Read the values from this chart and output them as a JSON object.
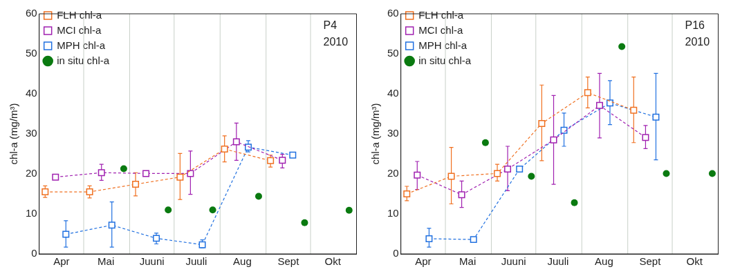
{
  "chart_data": [
    {
      "type": "line",
      "ylabel": "chl-a (mg/m³)",
      "annotations": [
        "P4",
        "2010"
      ],
      "xlim": [
        "2010-04-01",
        "2010-11-01"
      ],
      "xticks": [
        {
          "value": "2010-04-16",
          "label": "Apr"
        },
        {
          "value": "2010-05-16",
          "label": "Mai"
        },
        {
          "value": "2010-06-16",
          "label": "Juuni"
        },
        {
          "value": "2010-07-16",
          "label": "Juuli"
        },
        {
          "value": "2010-08-16",
          "label": "Aug"
        },
        {
          "value": "2010-09-16",
          "label": "Sept"
        },
        {
          "value": "2010-10-16",
          "label": "Okt"
        }
      ],
      "ylim": [
        0,
        60
      ],
      "yticks": [
        0,
        10,
        20,
        30,
        40,
        50,
        60
      ],
      "grid": false,
      "legend": "top left",
      "ref_lines": [
        {
          "axis": "x",
          "value": "2010-05-01",
          "color": "#c8d0c8"
        },
        {
          "axis": "x",
          "value": "2010-06-01",
          "color": "#c8d0c8"
        },
        {
          "axis": "x",
          "value": "2010-07-01",
          "color": "#c8d0c8"
        },
        {
          "axis": "x",
          "value": "2010-08-01",
          "color": "#c8d0c8"
        },
        {
          "axis": "x",
          "value": "2010-09-01",
          "color": "#c8d0c8"
        },
        {
          "axis": "x",
          "value": "2010-10-01",
          "color": "#c8d0c8"
        }
      ],
      "series": [
        {
          "name": "FLH chl-a",
          "type": "line",
          "color": "#f07020",
          "marker": "square",
          "line_style": "dashed",
          "x": [
            "2010-04-05",
            "2010-05-05",
            "2010-06-05",
            "2010-07-05",
            "2010-08-04",
            "2010-09-04"
          ],
          "values": [
            15.5,
            15.5,
            17.4,
            19.2,
            26.2,
            23.3
          ],
          "errors": [
            [
              14.1,
              17.0
            ],
            [
              14.0,
              17.0
            ],
            [
              14.5,
              20.3
            ],
            [
              13.6,
              25.1
            ],
            [
              23.0,
              29.5
            ],
            [
              21.7,
              24.7
            ]
          ]
        },
        {
          "name": "MCI chl-a",
          "type": "line",
          "color": "#a020b0",
          "marker": "square",
          "line_style": "dashed",
          "x": [
            "2010-04-12",
            "2010-05-13",
            "2010-06-12",
            "2010-07-12",
            "2010-08-12",
            "2010-09-12"
          ],
          "values": [
            19.2,
            20.3,
            20.1,
            20.1,
            28.0,
            23.4
          ],
          "errors": [
            null,
            [
              18.4,
              22.4
            ],
            null,
            [
              14.9,
              25.7
            ],
            [
              23.4,
              32.7
            ],
            [
              21.5,
              24.9
            ]
          ]
        },
        {
          "name": "MPH chl-a",
          "type": "line",
          "color": "#2070e0",
          "marker": "square",
          "line_style": "dashed",
          "x": [
            "2010-04-19",
            "2010-05-20",
            "2010-06-19",
            "2010-07-20",
            "2010-08-20",
            "2010-09-19"
          ],
          "values": [
            4.9,
            7.2,
            3.9,
            2.3,
            26.7,
            24.7
          ],
          "errors": [
            [
              1.7,
              8.3
            ],
            [
              1.7,
              13.0
            ],
            [
              2.5,
              5.2
            ],
            [
              1.5,
              3.5
            ],
            [
              25.5,
              28.3
            ],
            null
          ]
        },
        {
          "name": "in situ chl-a",
          "type": "scatter",
          "color": "#0a7a10",
          "marker": "circle",
          "x": [
            "2010-05-28",
            "2010-06-27",
            "2010-07-27",
            "2010-08-27",
            "2010-09-27",
            "2010-10-27"
          ],
          "values": [
            21.3,
            11.0,
            11.0,
            14.4,
            7.8,
            10.9
          ]
        }
      ]
    },
    {
      "type": "line",
      "ylabel": "chl-a (mg/m³)",
      "annotations": [
        "P16",
        "2010"
      ],
      "xlim": [
        "2010-04-01",
        "2010-11-01"
      ],
      "xticks": [
        {
          "value": "2010-04-16",
          "label": "Apr"
        },
        {
          "value": "2010-05-16",
          "label": "Mai"
        },
        {
          "value": "2010-06-16",
          "label": "Juuni"
        },
        {
          "value": "2010-07-16",
          "label": "Juuli"
        },
        {
          "value": "2010-08-16",
          "label": "Aug"
        },
        {
          "value": "2010-09-16",
          "label": "Sept"
        },
        {
          "value": "2010-10-16",
          "label": "Okt"
        }
      ],
      "ylim": [
        0,
        60
      ],
      "yticks": [
        0,
        10,
        20,
        30,
        40,
        50,
        60
      ],
      "grid": false,
      "legend": "top left",
      "ref_lines": [
        {
          "axis": "x",
          "value": "2010-05-01",
          "color": "#c8d0c8"
        },
        {
          "axis": "x",
          "value": "2010-06-01",
          "color": "#c8d0c8"
        },
        {
          "axis": "x",
          "value": "2010-07-01",
          "color": "#c8d0c8"
        },
        {
          "axis": "x",
          "value": "2010-08-01",
          "color": "#c8d0c8"
        },
        {
          "axis": "x",
          "value": "2010-09-01",
          "color": "#c8d0c8"
        },
        {
          "axis": "x",
          "value": "2010-10-01",
          "color": "#c8d0c8"
        }
      ],
      "series": [
        {
          "name": "FLH chl-a",
          "type": "line",
          "color": "#f07020",
          "marker": "square",
          "line_style": "dashed",
          "x": [
            "2010-04-05",
            "2010-05-05",
            "2010-06-05",
            "2010-07-05",
            "2010-08-05",
            "2010-09-05"
          ],
          "values": [
            15.0,
            19.4,
            20.1,
            32.6,
            40.3,
            35.9
          ],
          "errors": [
            [
              13.3,
              16.9
            ],
            [
              12.5,
              26.6
            ],
            [
              18.2,
              22.4
            ],
            [
              23.3,
              42.2
            ],
            [
              36.5,
              44.2
            ],
            [
              27.8,
              44.2
            ]
          ]
        },
        {
          "name": "MCI chl-a",
          "type": "line",
          "color": "#a020b0",
          "marker": "square",
          "line_style": "dashed",
          "x": [
            "2010-04-12",
            "2010-05-12",
            "2010-06-12",
            "2010-07-13",
            "2010-08-13",
            "2010-09-13"
          ],
          "values": [
            19.7,
            14.8,
            21.2,
            28.5,
            37.1,
            29.1
          ],
          "errors": [
            [
              16.1,
              23.1
            ],
            [
              11.6,
              18.2
            ],
            [
              15.8,
              26.9
            ],
            [
              17.4,
              39.6
            ],
            [
              29.0,
              45.1
            ],
            [
              26.3,
              32.1
            ]
          ]
        },
        {
          "name": "MPH chl-a",
          "type": "line",
          "color": "#2070e0",
          "marker": "square",
          "line_style": "dashed",
          "x": [
            "2010-04-20",
            "2010-05-20",
            "2010-06-20",
            "2010-07-20",
            "2010-08-20",
            "2010-09-20"
          ],
          "values": [
            3.8,
            3.6,
            21.2,
            30.9,
            37.7,
            34.2
          ],
          "errors": [
            [
              1.7,
              6.4
            ],
            null,
            null,
            [
              26.9,
              35.2
            ],
            [
              32.3,
              43.3
            ],
            [
              23.5,
              45.1
            ]
          ]
        },
        {
          "name": "in situ chl-a",
          "type": "scatter",
          "color": "#0a7a10",
          "marker": "circle",
          "x": [
            "2010-05-28",
            "2010-06-28",
            "2010-07-27",
            "2010-08-28",
            "2010-09-27",
            "2010-10-28"
          ],
          "values": [
            27.8,
            19.4,
            12.8,
            51.8,
            20.1,
            20.1
          ]
        }
      ]
    }
  ]
}
